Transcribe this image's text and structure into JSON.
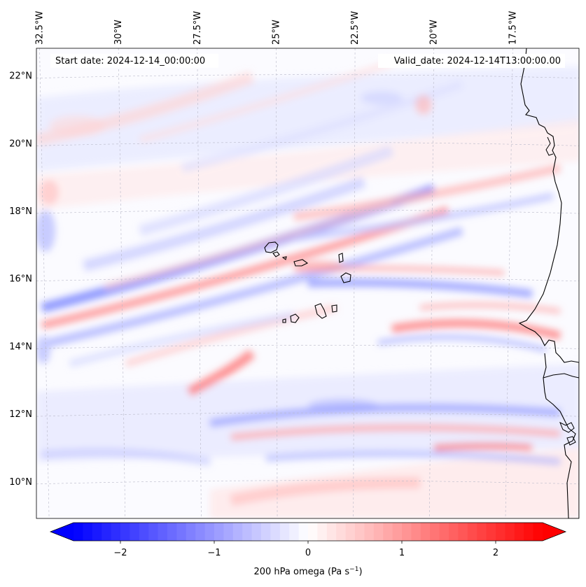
{
  "map": {
    "start_date": "Start date: 2024-12-14_00:00:00",
    "valid_date": "Valid_date: 2024-12-14T13:00:00.00",
    "lon_ticks": [
      "32.5°W",
      "30°W",
      "27.5°W",
      "25°W",
      "22.5°W",
      "20°W",
      "17.5°W"
    ],
    "lat_ticks": [
      "22°N",
      "20°N",
      "18°N",
      "16°N",
      "14°N",
      "12°N",
      "10°N"
    ],
    "lon_values": [
      -32.5,
      -30,
      -27.5,
      -25,
      -22.5,
      -20,
      -17.5
    ],
    "lat_values": [
      22,
      20,
      18,
      16,
      14,
      12,
      10
    ],
    "extent": {
      "lon_min": -32.6,
      "lon_max": -15.4,
      "lat_min": 8.9,
      "lat_max": 22.8
    },
    "field": "200 hPa omega",
    "coastline_color": "#000000",
    "positive_color": "#ff0000",
    "negative_color": "#0000ff",
    "zero_color": "#ffffff"
  },
  "colorbar": {
    "label_main": "200 hPa omega (Pa s",
    "label_exp": "−1",
    "label_end": ")",
    "ticks": [
      "−2",
      "−1",
      "0",
      "1",
      "2"
    ],
    "tick_values": [
      -2,
      -1,
      0,
      1,
      2
    ],
    "vmin": -2.5,
    "vmax": 2.5,
    "extend": "both"
  }
}
